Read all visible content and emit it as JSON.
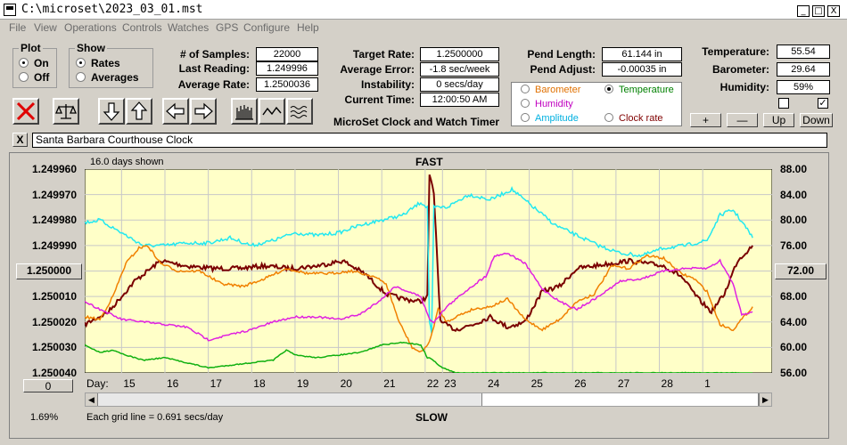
{
  "window": {
    "title": "C:\\microset\\2023_03_01.mst",
    "minimize": "_",
    "maximize": "□",
    "close": "X"
  },
  "menu": [
    "File",
    "View",
    "Operations",
    "Controls",
    "Watches",
    "GPS",
    "Configure",
    "Help"
  ],
  "plot_group": {
    "legend": "Plot",
    "options": [
      "On",
      "Off"
    ],
    "selected": "On"
  },
  "show_group": {
    "legend": "Show",
    "options": [
      "Rates",
      "Averages"
    ],
    "selected": "Rates"
  },
  "stats1": [
    {
      "label": "# of Samples:",
      "value": "22000"
    },
    {
      "label": "Last Reading:",
      "value": "1.249996"
    },
    {
      "label": "Average Rate:",
      "value": "1.2500036"
    }
  ],
  "stats2": [
    {
      "label": "Target Rate:",
      "value": "1.2500000"
    },
    {
      "label": "Average Error:",
      "value": "-1.8 sec/week"
    },
    {
      "label": "Instability:",
      "value": "0 secs/day"
    },
    {
      "label": "Current Time:",
      "value": "12:00:50 AM"
    }
  ],
  "app_caption": "MicroSet Clock and Watch Timer",
  "pend": [
    {
      "label": "Pend Length:",
      "value": "61.144 in"
    },
    {
      "label": "Pend Adjust:",
      "value": "-0.00035 in"
    }
  ],
  "sensor_options": [
    {
      "label": "Barometer",
      "color": "#e07000",
      "checked": false
    },
    {
      "label": "Temperature",
      "color": "#008000",
      "checked": true
    },
    {
      "label": "Humidity",
      "color": "#c000c0",
      "checked": false
    },
    {
      "label": "Amplitude",
      "color": "#00b0e0",
      "checked": false
    },
    {
      "label": "Clock rate",
      "color": "#800000",
      "checked": false
    }
  ],
  "env": [
    {
      "label": "Temperature:",
      "value": "55.54"
    },
    {
      "label": "Barometer:",
      "value": "29.64"
    },
    {
      "label": "Humidity:",
      "value": "59%"
    }
  ],
  "checkbox_states": [
    false,
    true
  ],
  "adjust_buttons": [
    "+",
    "—",
    "Up",
    "Down"
  ],
  "clock_name": "Santa Barbara Courthouse Clock",
  "clear_label": "X",
  "chart_panel": {
    "days_shown": "16.0 days shown",
    "fast": "FAST",
    "slow": "SLOW",
    "center_rate": "1.250000",
    "right_center": "72.00",
    "zero_button": "0",
    "percent": "1.69%",
    "grid_note": "Each grid line = 0.691 secs/day",
    "day_prefix": "Day:"
  },
  "chart_data": {
    "type": "line",
    "left_axis": {
      "ticks": [
        "1.249960",
        "1.249970",
        "1.249980",
        "1.249990",
        "1.250000",
        "1.250010",
        "1.250020",
        "1.250030",
        "1.250040"
      ],
      "ylim": [
        1.24996,
        1.25004
      ],
      "inverted": true
    },
    "right_axis": {
      "ticks": [
        "88.00",
        "84.00",
        "80.00",
        "76.00",
        "72.00",
        "68.00",
        "64.00",
        "60.00",
        "56.00"
      ],
      "ylim": [
        56,
        88
      ]
    },
    "x_ticks": [
      "15",
      "16",
      "17",
      "18",
      "19",
      "20",
      "21",
      "22",
      "23",
      "24",
      "25",
      "26",
      "27",
      "28",
      "1"
    ],
    "x_tick_positions": [
      14.5,
      15.5,
      16.5,
      17.5,
      18.5,
      19.5,
      20.5,
      21.5,
      21.9,
      22.9,
      23.9,
      24.9,
      25.9,
      26.9,
      27.9
    ],
    "xlim": [
      13.65,
      29.5
    ],
    "grid": true,
    "colors": {
      "Clock rate": "#7a0000",
      "Amplitude": "#22e8f0",
      "Barometer": "#f08000",
      "Humidity": "#e020e0",
      "Temperature": "#10b010"
    },
    "series": [
      {
        "name": "Clock rate",
        "axis": "left",
        "noise": 9e-07,
        "x": [
          13.65,
          14.2,
          14.8,
          15.4,
          16,
          16.6,
          17.2,
          17.8,
          18.4,
          19,
          19.6,
          20.1,
          20.6,
          21,
          21.4,
          21.55,
          21.6,
          21.7,
          21.75,
          21.85,
          22.2,
          22.6,
          23,
          23.4,
          23.8,
          24.2,
          24.6,
          25,
          25.4,
          25.8,
          26.2,
          26.6,
          27,
          27.4,
          27.8,
          28.1,
          28.4,
          28.7,
          29.05
        ],
        "y": [
          1.250021,
          1.250016,
          1.250004,
          1.249996,
          1.249998,
          1.249999,
          1.249999,
          1.249998,
          1.249999,
          1.249998,
          1.249996,
          1.250001,
          1.250009,
          1.250011,
          1.250012,
          1.25001,
          1.249962,
          1.24997,
          1.249985,
          1.25002,
          1.250023,
          1.250021,
          1.250018,
          1.250022,
          1.25002,
          1.250008,
          1.250006,
          1.249999,
          1.249998,
          1.249997,
          1.249996,
          1.249997,
          1.249998,
          1.250002,
          1.250011,
          1.250016,
          1.250009,
          1.249996,
          1.24999
        ]
      },
      {
        "name": "Amplitude",
        "axis": "left",
        "noise": 7e-07,
        "x": [
          13.65,
          14.0,
          14.5,
          15.0,
          15.5,
          16.0,
          16.5,
          17.0,
          17.5,
          18.0,
          18.5,
          19.0,
          19.5,
          20.0,
          20.5,
          21.0,
          21.4,
          21.55,
          21.6,
          21.65,
          21.7,
          22.0,
          22.5,
          23.0,
          23.5,
          24.0,
          24.5,
          25.0,
          25.5,
          26.0,
          26.5,
          27.0,
          27.5,
          28.0,
          28.3,
          28.6,
          28.9,
          29.05
        ],
        "y": [
          1.249981,
          1.24998,
          1.249985,
          1.24999,
          1.24999,
          1.249989,
          1.249989,
          1.249987,
          1.24999,
          1.249988,
          1.249985,
          1.249986,
          1.249985,
          1.249982,
          1.24998,
          1.249978,
          1.249973,
          1.249975,
          1.25002,
          1.250025,
          1.249975,
          1.249975,
          1.24997,
          1.249972,
          1.249968,
          1.249975,
          1.249982,
          1.249986,
          1.24999,
          1.249993,
          1.249994,
          1.249991,
          1.24999,
          1.249988,
          1.249978,
          1.249976,
          1.249983,
          1.249987
        ]
      },
      {
        "name": "Barometer",
        "axis": "left",
        "noise": 5e-07,
        "x": [
          13.65,
          14.0,
          14.3,
          14.6,
          14.9,
          15.1,
          15.4,
          15.8,
          16.3,
          16.8,
          17.3,
          17.8,
          18.3,
          18.8,
          19.3,
          19.8,
          20.3,
          20.6,
          20.9,
          21.2,
          21.4,
          21.6,
          21.8,
          22.0,
          22.2,
          22.6,
          23.0,
          23.4,
          23.8,
          24.2,
          24.6,
          25.0,
          25.4,
          25.8,
          26.2,
          26.6,
          27.0,
          27.4,
          27.7,
          28.0,
          28.3,
          28.6,
          29.05
        ],
        "y": [
          1.250018,
          1.250019,
          1.25001,
          1.249997,
          1.249991,
          1.24999,
          1.249997,
          1.25,
          1.25,
          1.250005,
          1.250006,
          1.250003,
          1.249999,
          1.250001,
          1.250001,
          1.25,
          1.250002,
          1.250005,
          1.25002,
          1.25003,
          1.250032,
          1.250028,
          1.250015,
          1.25002,
          1.250018,
          1.250015,
          1.250014,
          1.250011,
          1.250019,
          1.250023,
          1.250019,
          1.250012,
          1.250009,
          1.249998,
          1.249999,
          1.249994,
          1.249995,
          1.250001,
          1.250003,
          1.250008,
          1.250021,
          1.250023,
          1.250014
        ]
      },
      {
        "name": "Humidity",
        "axis": "left",
        "noise": 4e-07,
        "x": [
          13.65,
          14.0,
          14.5,
          15.0,
          15.5,
          16.0,
          16.5,
          17.0,
          17.5,
          18.0,
          18.5,
          19.0,
          19.5,
          20.0,
          20.5,
          20.8,
          21.1,
          21.4,
          21.6,
          21.7,
          22.0,
          22.5,
          22.9,
          23.1,
          23.4,
          23.8,
          24.2,
          24.6,
          25.0,
          25.5,
          26.0,
          26.5,
          27.0,
          27.5,
          28.0,
          28.3,
          28.6,
          28.8,
          29.05
        ],
        "y": [
          1.250012,
          1.250015,
          1.250019,
          1.25002,
          1.250021,
          1.250022,
          1.250027,
          1.250025,
          1.250023,
          1.25002,
          1.250018,
          1.250018,
          1.250019,
          1.250017,
          1.250011,
          1.250006,
          1.250008,
          1.25001,
          1.250019,
          1.25002,
          1.250014,
          1.250007,
          1.250002,
          1.249994,
          1.249993,
          1.249997,
          1.250007,
          1.250012,
          1.250015,
          1.25001,
          1.250004,
          1.250003,
          1.25,
          1.249999,
          1.249999,
          1.249996,
          1.250005,
          1.250017,
          1.250016
        ]
      },
      {
        "name": "Temperature",
        "axis": "left",
        "noise": 2e-07,
        "x": [
          13.65,
          14.0,
          14.3,
          14.6,
          15.0,
          15.5,
          16.0,
          16.5,
          17.0,
          17.5,
          18.0,
          18.3,
          18.5,
          19.0,
          19.5,
          20.0,
          20.5,
          21.0,
          21.4,
          21.55,
          21.6,
          21.9,
          22.2,
          23.0,
          24.0,
          25.0,
          26.0,
          27.0,
          28.0,
          29.05
        ],
        "y": [
          1.250029,
          1.250032,
          1.250031,
          1.250033,
          1.250035,
          1.250034,
          1.250036,
          1.250038,
          1.250037,
          1.250036,
          1.250035,
          1.250031,
          1.250033,
          1.250034,
          1.250033,
          1.250032,
          1.250029,
          1.250028,
          1.250029,
          1.250034,
          1.250034,
          1.250038,
          1.25004,
          1.25004,
          1.25004,
          1.25004,
          1.25004,
          1.25004,
          1.25004,
          1.25004
        ]
      }
    ]
  }
}
